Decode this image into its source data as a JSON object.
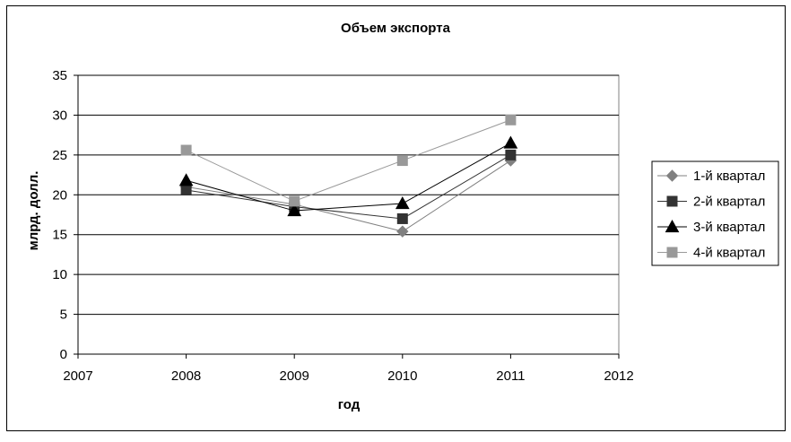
{
  "chart_data": {
    "type": "line",
    "title": "Объем экспорта",
    "xlabel": "год",
    "ylabel": "млрд. долл.",
    "xlim": [
      2007,
      2012
    ],
    "ylim": [
      0,
      35
    ],
    "x_ticks": [
      "2007",
      "2008",
      "2009",
      "2010",
      "2011",
      "2012"
    ],
    "y_ticks": [
      "0",
      "5",
      "10",
      "15",
      "20",
      "25",
      "30",
      "35"
    ],
    "grid": "horizontal",
    "legend_position": "right",
    "x": [
      2008,
      2009,
      2010,
      2011
    ],
    "series": [
      {
        "name": "1-й квартал",
        "values": [
          21.0,
          18.8,
          15.4,
          24.3
        ],
        "color": "#808080",
        "marker": "diamond"
      },
      {
        "name": "2-й квартал",
        "values": [
          20.6,
          18.5,
          17.0,
          25.0
        ],
        "color": "#333333",
        "marker": "square"
      },
      {
        "name": "3-й квартал",
        "values": [
          21.8,
          18.0,
          18.9,
          26.5
        ],
        "color": "#000000",
        "marker": "triangle"
      },
      {
        "name": "4-й квартал",
        "values": [
          25.6,
          19.2,
          24.3,
          29.4
        ],
        "color": "#999999",
        "marker": "square"
      }
    ]
  }
}
